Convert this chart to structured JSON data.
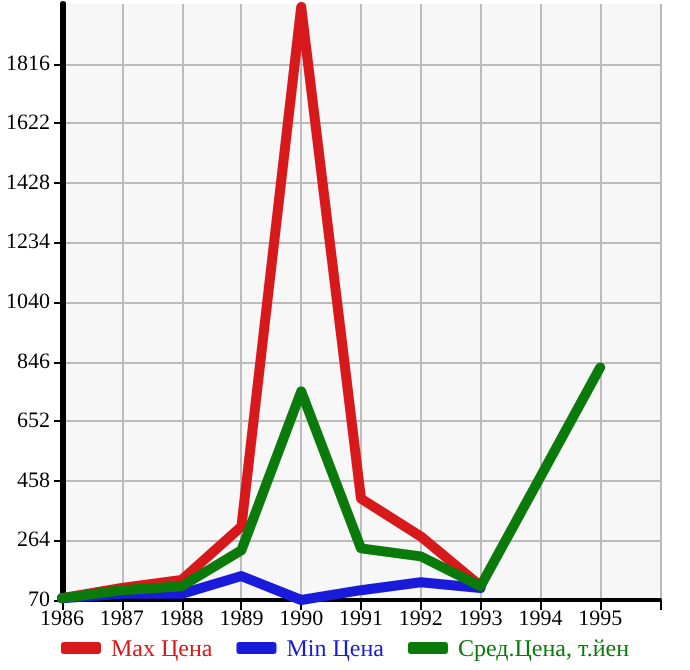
{
  "chart_data": {
    "type": "line",
    "categories": [
      "1986",
      "1987",
      "1988",
      "1989",
      "1990",
      "1991",
      "1992",
      "1993",
      "1994",
      "1995",
      null
    ],
    "series": [
      {
        "name": "Max Цена",
        "color": "#d7191c",
        "values": [
          76,
          109,
          135,
          309,
          2000,
          400,
          277,
          115,
          null,
          null,
          null
        ]
      },
      {
        "name": "Min Цена",
        "color": "#1a1adb",
        "values": [
          76,
          90,
          90,
          148,
          70,
          102,
          128,
          109,
          null,
          null,
          null
        ]
      },
      {
        "name": "Сред.Цена, т.йен",
        "color": "#0a7a0a",
        "values": [
          76,
          102,
          115,
          232,
          749,
          238,
          212,
          115,
          471,
          827,
          null
        ]
      }
    ],
    "ylim": [
      70,
      2010
    ],
    "yticks": [
      70,
      264,
      458,
      652,
      846,
      1040,
      1234,
      1428,
      1622,
      1816
    ],
    "grid": true,
    "legend": "bottom",
    "marker": "none",
    "line_style": "solid"
  }
}
